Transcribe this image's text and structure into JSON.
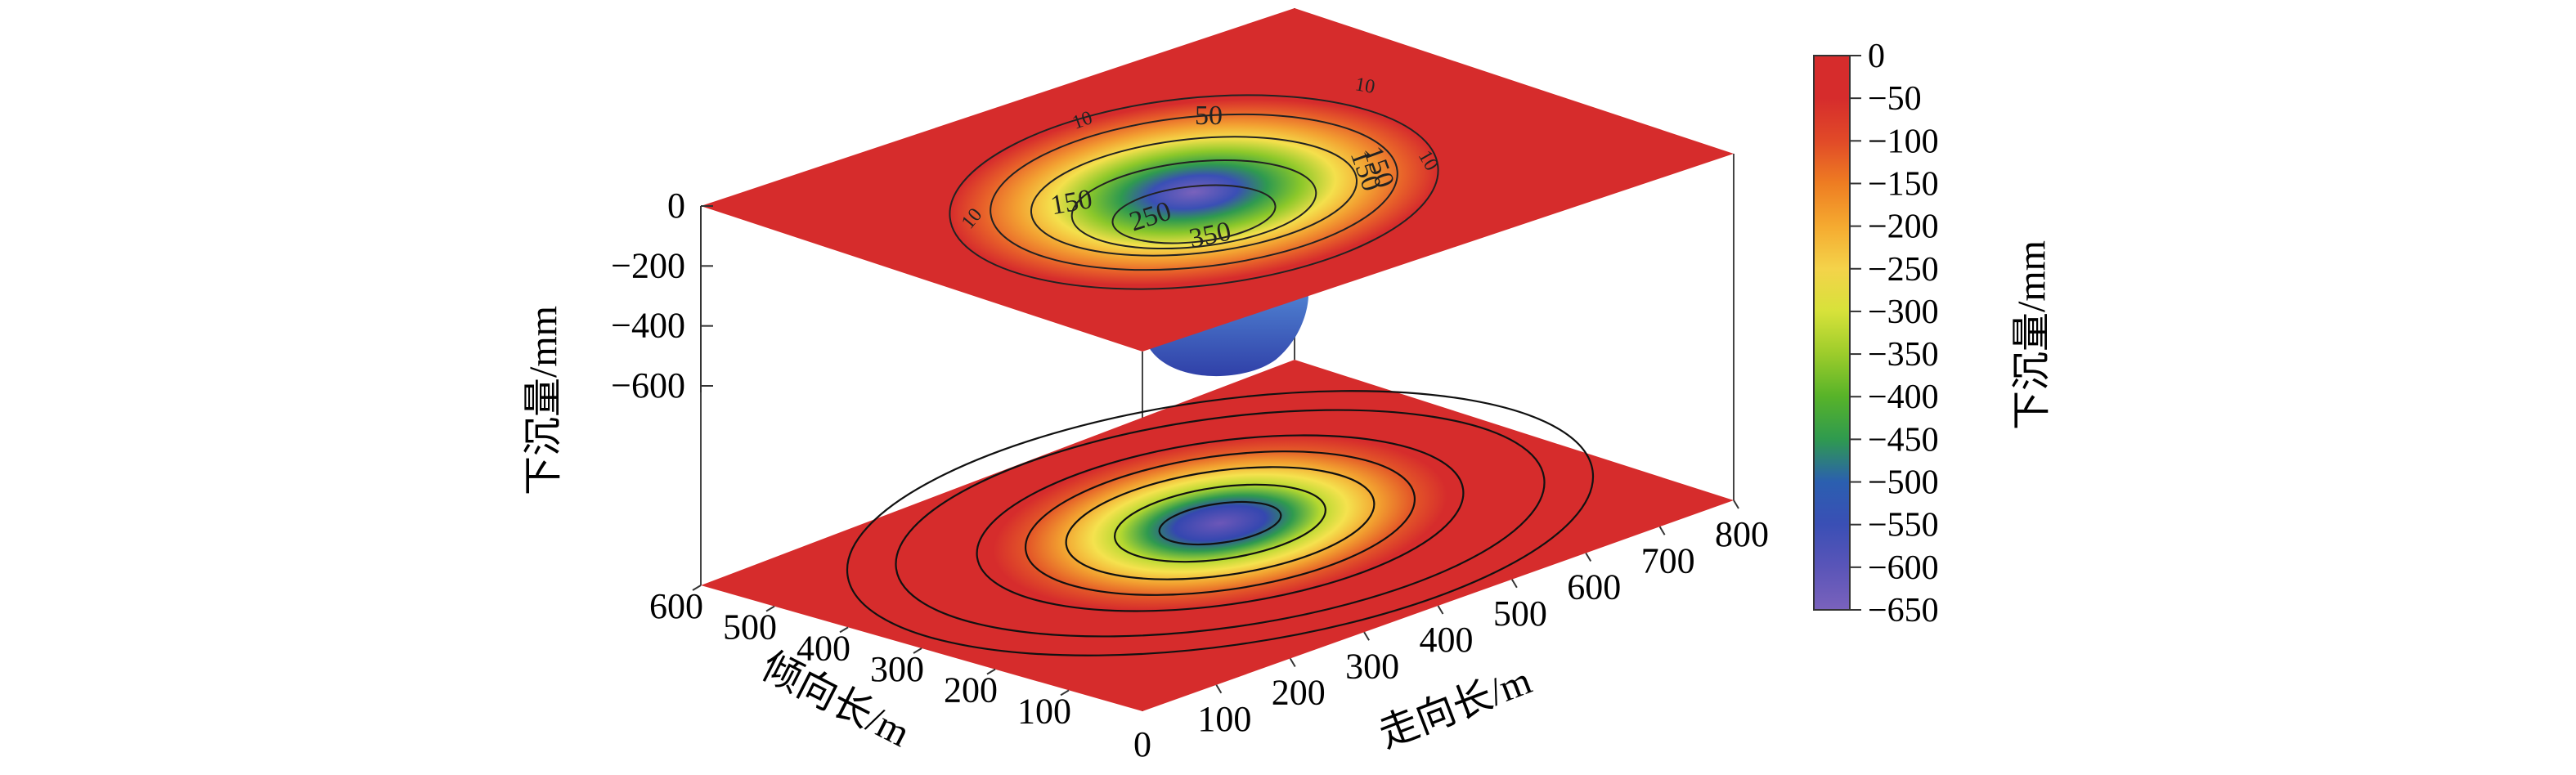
{
  "chart_data": {
    "type": "surface-3d-with-contour",
    "z_axis": {
      "label": "下沉量/mm",
      "ticks": [
        "0",
        "−200",
        "−400",
        "−600"
      ],
      "values": [
        0,
        -200,
        -400,
        -600
      ]
    },
    "x_axis": {
      "label": "走向长/m",
      "ticks": [
        "100",
        "200",
        "300",
        "400",
        "500",
        "600",
        "700",
        "800"
      ],
      "range": [
        0,
        800
      ]
    },
    "y_axis": {
      "label": "倾向长/m",
      "ticks": [
        "100",
        "200",
        "300",
        "400",
        "500",
        "600"
      ],
      "range": [
        0,
        600
      ]
    },
    "origin_label": "0",
    "surface": {
      "contour_labels": [
        "10",
        "10",
        "50",
        "150",
        "150",
        "250",
        "350",
        "10",
        "10",
        "150"
      ],
      "min_value": -650,
      "max_value": 0
    },
    "colorbar": {
      "label": "下沉量/mm",
      "ticks": [
        "0",
        "−50",
        "−100",
        "−150",
        "−200",
        "−250",
        "−300",
        "−350",
        "−400",
        "−450",
        "−500",
        "−550",
        "−600",
        "−650"
      ],
      "values": [
        0,
        -50,
        -100,
        -150,
        -200,
        -250,
        -300,
        -350,
        -400,
        -450,
        -500,
        -550,
        -600,
        -650
      ],
      "stops": [
        "#d62c2c",
        "#d62c2c",
        "#e14a28",
        "#ee7d22",
        "#f5aa30",
        "#f4d34a",
        "#d7e23a",
        "#9ccc2b",
        "#57b329",
        "#2f9a4f",
        "#2b5fb0",
        "#3a4fb5",
        "#5a55b8",
        "#7a62bc"
      ]
    }
  }
}
